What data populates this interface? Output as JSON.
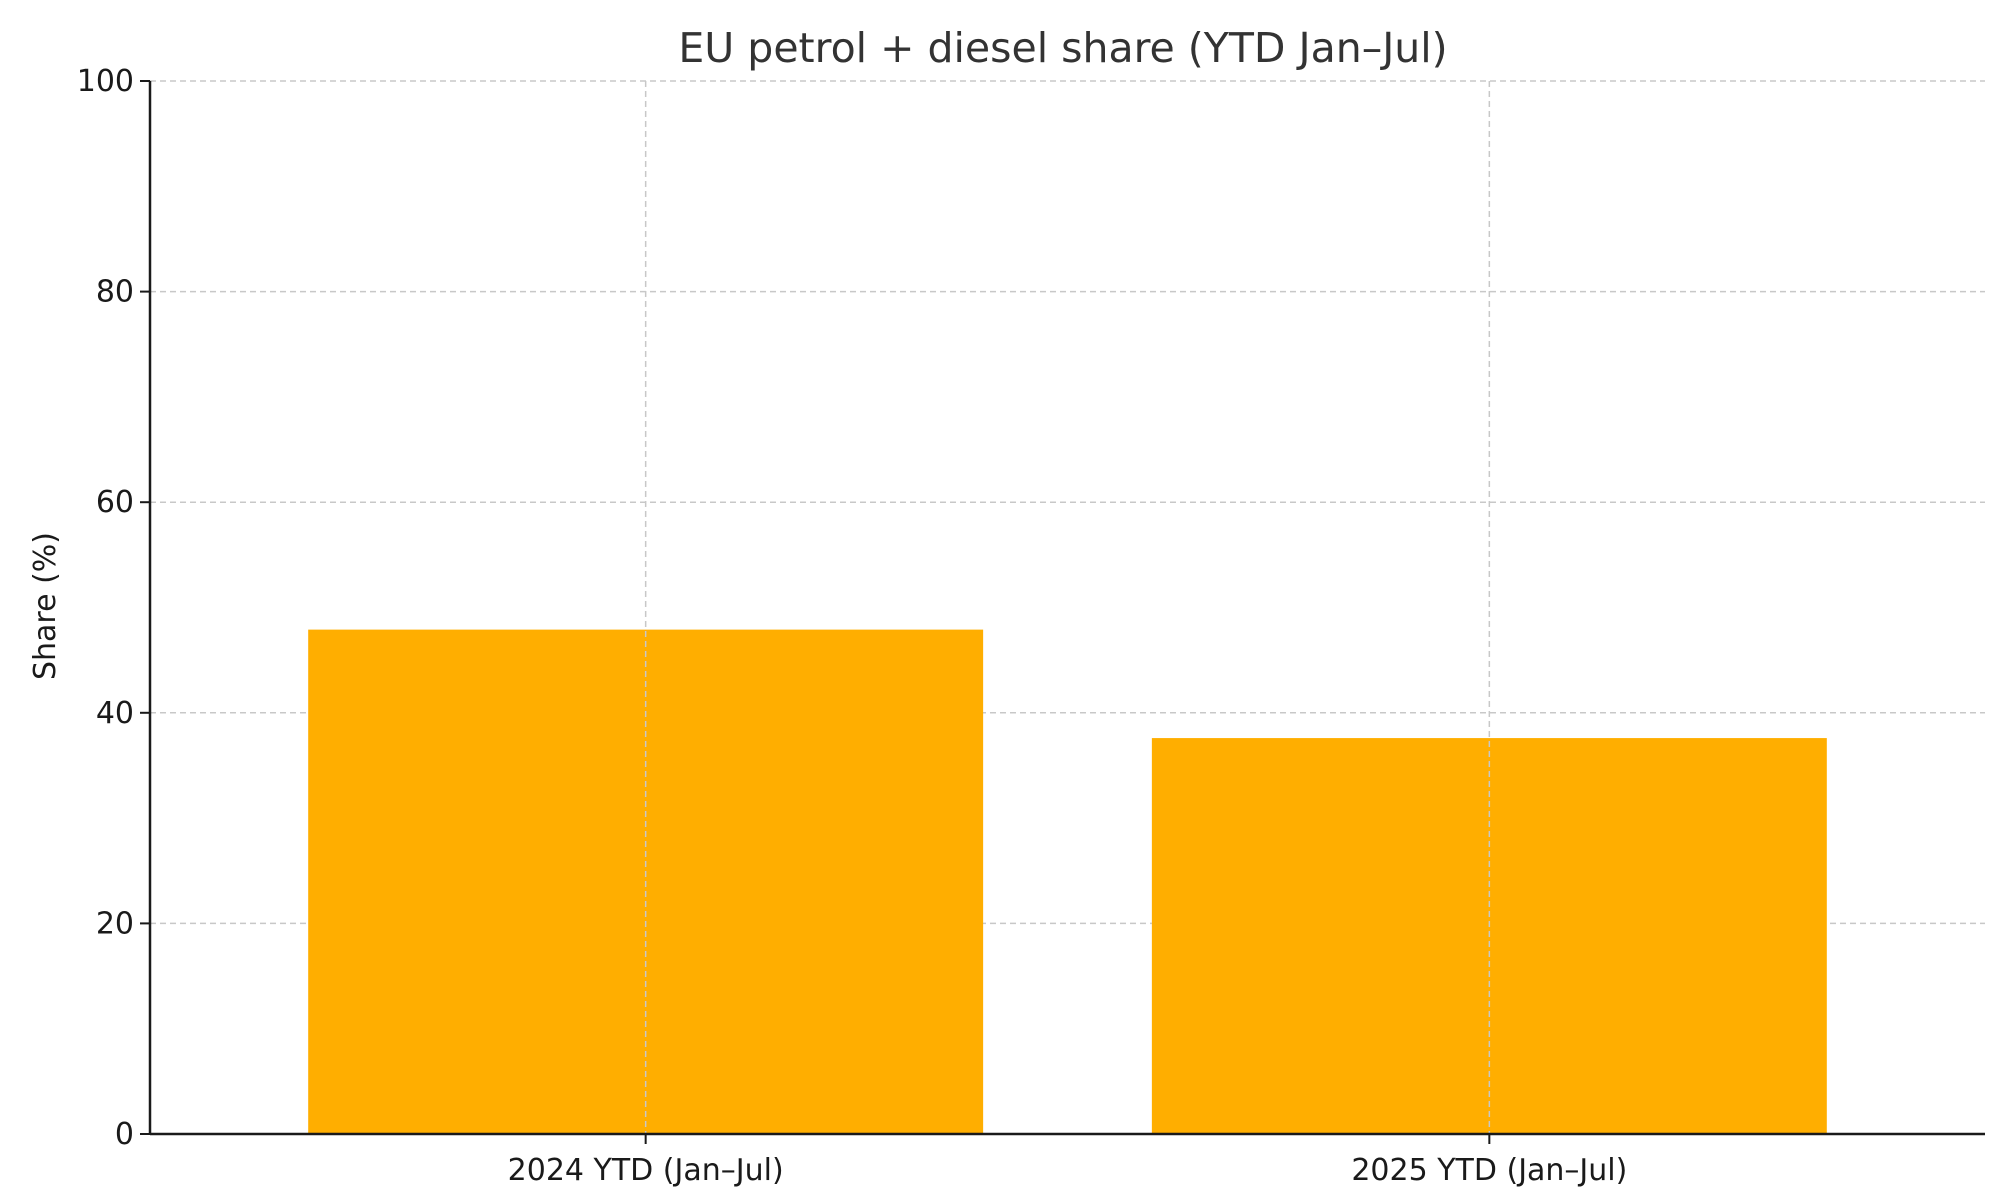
{
  "chart_data": {
    "type": "bar",
    "title": "EU petrol + diesel share (YTD Jan–Jul)",
    "xlabel": "",
    "ylabel": "Share (%)",
    "categories": [
      "2024 YTD (Jan–Jul)",
      "2025 YTD (Jan–Jul)"
    ],
    "values": [
      47.9,
      37.6
    ],
    "ylim": [
      0,
      100
    ],
    "yticks": [
      0,
      20,
      40,
      60,
      80,
      100
    ],
    "bar_color": "#FFAE00",
    "grid": true,
    "legend": "none"
  }
}
